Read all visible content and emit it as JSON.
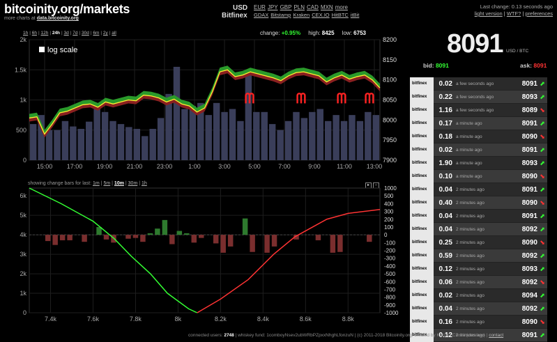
{
  "header": {
    "site_title": "bitcoinity.org/markets",
    "more_charts_prefix": "more charts at ",
    "more_charts_link": "data.bitcoinity.org",
    "currency_label": "USD",
    "exchange_label": "Bitfinex",
    "currencies": [
      "EUR",
      "JPY",
      "GBP",
      "PLN",
      "CAD",
      "MXN",
      "more"
    ],
    "exchanges": [
      "GDAX",
      "Bitstamp",
      "Kraken",
      "CEX.IO",
      "HitBTC",
      "itBit"
    ],
    "last_change": "Last change: 0.13 seconds ago",
    "light_version": "light version",
    "wtf": "WTF?",
    "preferences": "preferences"
  },
  "timeframes": [
    "1h",
    "6h",
    "12h",
    "24h",
    "3d",
    "7d",
    "30d",
    "6m",
    "2y",
    "all"
  ],
  "timeframe_selected": "24h",
  "stats": {
    "change_label": "change:",
    "change": "+0.95%",
    "high_label": "high:",
    "high": "8425",
    "low_label": "low:",
    "low": "6753"
  },
  "log_scale_label": "log scale",
  "change_bars": {
    "label": "showing change bars for last:",
    "options": [
      "1m",
      "5m",
      "10m",
      "30m",
      "1h"
    ],
    "selected": "10m"
  },
  "ticker": {
    "price": "8091",
    "unit": "USD / BTC",
    "bid_label": "bid:",
    "bid": "8091",
    "ask_label": "ask:",
    "ask": "8091"
  },
  "trades": [
    {
      "exchange": "bitfinex",
      "amount": "0.02",
      "time": "a few seconds ago",
      "price": "8091",
      "dir": "up"
    },
    {
      "exchange": "bitfinex",
      "amount": "0.22",
      "time": "a few seconds ago",
      "price": "8093",
      "dir": "up"
    },
    {
      "exchange": "bitfinex",
      "amount": "1.16",
      "time": "a few seconds ago",
      "price": "8089",
      "dir": "down"
    },
    {
      "exchange": "bitfinex",
      "amount": "0.17",
      "time": "a minute ago",
      "price": "8091",
      "dir": "up"
    },
    {
      "exchange": "bitfinex",
      "amount": "0.18",
      "time": "a minute ago",
      "price": "8090",
      "dir": "down"
    },
    {
      "exchange": "bitfinex",
      "amount": "0.02",
      "time": "a minute ago",
      "price": "8091",
      "dir": "up"
    },
    {
      "exchange": "bitfinex",
      "amount": "1.90",
      "time": "a minute ago",
      "price": "8093",
      "dir": "up"
    },
    {
      "exchange": "bitfinex",
      "amount": "0.10",
      "time": "a minute ago",
      "price": "8090",
      "dir": "down"
    },
    {
      "exchange": "bitfinex",
      "amount": "0.04",
      "time": "2 minutes ago",
      "price": "8091",
      "dir": "up"
    },
    {
      "exchange": "bitfinex",
      "amount": "0.40",
      "time": "2 minutes ago",
      "price": "8090",
      "dir": "down"
    },
    {
      "exchange": "bitfinex",
      "amount": "0.04",
      "time": "2 minutes ago",
      "price": "8091",
      "dir": "up"
    },
    {
      "exchange": "bitfinex",
      "amount": "0.04",
      "time": "2 minutes ago",
      "price": "8092",
      "dir": "up"
    },
    {
      "exchange": "bitfinex",
      "amount": "0.25",
      "time": "2 minutes ago",
      "price": "8090",
      "dir": "down"
    },
    {
      "exchange": "bitfinex",
      "amount": "0.59",
      "time": "2 minutes ago",
      "price": "8092",
      "dir": "up"
    },
    {
      "exchange": "bitfinex",
      "amount": "0.12",
      "time": "2 minutes ago",
      "price": "8093",
      "dir": "up"
    },
    {
      "exchange": "bitfinex",
      "amount": "0.06",
      "time": "2 minutes ago",
      "price": "8092",
      "dir": "down"
    },
    {
      "exchange": "bitfinex",
      "amount": "0.02",
      "time": "2 minutes ago",
      "price": "8094",
      "dir": "up"
    },
    {
      "exchange": "bitfinex",
      "amount": "0.04",
      "time": "2 minutes ago",
      "price": "8092",
      "dir": "up"
    },
    {
      "exchange": "bitfinex",
      "amount": "0.16",
      "time": "2 minutes ago",
      "price": "8090",
      "dir": "down"
    },
    {
      "exchange": "bitfinex",
      "amount": "0.12",
      "time": "2 minutes ago",
      "price": "8091",
      "dir": "up"
    }
  ],
  "footer": {
    "connected_label": "connected users:",
    "connected": "2748",
    "rest": "| whiskey fund: 1comboyNsev2ubWRbPZpxxNhghLfonzuN | (c) 2011-2018 Bitcoinity.org, created by Kacper Cieśla (comboy) |",
    "contact": "contact"
  },
  "colors": {
    "bg": "#000",
    "up": "#33ff33",
    "down": "#ff3333",
    "price_line": "#ffee33",
    "volume": "#3a3e5a",
    "annotation": "#ff2222"
  },
  "chart_data": [
    {
      "type": "line",
      "x_ticks": [
        "15:00",
        "17:00",
        "19:00",
        "21:00",
        "23:00",
        "1:00",
        "3:00",
        "5:00",
        "7:00",
        "9:00",
        "11:00",
        "13:00"
      ],
      "left_ticks": [
        "0",
        "500",
        "1k",
        "1.5k",
        "2k"
      ],
      "right_ticks": [
        "7900",
        "7950",
        "8000",
        "8050",
        "8100",
        "8150",
        "8200"
      ],
      "ylim_price": [
        7900,
        8200
      ],
      "ylim_volume": [
        0,
        2000
      ],
      "price": [
        8005,
        8008,
        7965,
        7990,
        8018,
        8022,
        8030,
        8038,
        8040,
        8032,
        8045,
        8040,
        8045,
        8050,
        8048,
        8062,
        8060,
        8055,
        8045,
        8052,
        8040,
        8035,
        8020,
        8030,
        8070,
        8120,
        8125,
        8108,
        8112,
        8120,
        8115,
        8110,
        8105,
        8098,
        8110,
        8118,
        8120,
        8115,
        8110,
        8095,
        8105,
        8112,
        8102,
        8108,
        8112,
        8100,
        8080
      ],
      "volume": [
        600,
        750,
        500,
        500,
        650,
        560,
        520,
        640,
        900,
        800,
        650,
        600,
        550,
        520,
        400,
        520,
        700,
        1100,
        1550,
        850,
        900,
        950,
        750,
        950,
        800,
        850,
        650,
        1500,
        800,
        800,
        600,
        500,
        650,
        800,
        700,
        800,
        850,
        650,
        750,
        650,
        750,
        650,
        800,
        750
      ],
      "annotations": [
        "ᗰ",
        "ᗰ",
        "ᗰ",
        "ᗰ"
      ]
    },
    {
      "type": "area",
      "x_ticks": [
        "7.4k",
        "7.6k",
        "7.8k",
        "8k",
        "8.2k",
        "8.4k",
        "8.6k",
        "8.8k"
      ],
      "left_ticks": [
        "0",
        "1k",
        "2k",
        "3k",
        "4k",
        "5k",
        "6k"
      ],
      "right_ticks": [
        "-1000",
        "-900",
        "-800",
        "-700",
        "-600",
        "-500",
        "-400",
        "-300",
        "-200",
        "-100",
        "0",
        "100",
        "200",
        "300",
        "400",
        "500",
        "1000"
      ],
      "bids": [
        [
          7300,
          6400
        ],
        [
          7450,
          5600
        ],
        [
          7600,
          4700
        ],
        [
          7700,
          3800
        ],
        [
          7780,
          2900
        ],
        [
          7870,
          2000
        ],
        [
          7950,
          1000
        ],
        [
          8050,
          200
        ],
        [
          8090,
          0
        ]
      ],
      "asks": [
        [
          8090,
          0
        ],
        [
          8200,
          700
        ],
        [
          8330,
          1700
        ],
        [
          8450,
          3000
        ],
        [
          8550,
          3900
        ],
        [
          8700,
          4800
        ],
        [
          8800,
          5100
        ],
        [
          8950,
          5300
        ]
      ],
      "change_bars": [
        0,
        0,
        -80,
        -130,
        -70,
        -70,
        0,
        -90,
        0,
        100,
        -60,
        -100,
        0,
        -50,
        -40,
        -90,
        20,
        80,
        190,
        -120,
        50,
        20,
        -100,
        -40,
        0,
        -110,
        -230,
        -150,
        0,
        210,
        -220,
        0,
        -230,
        -150,
        0,
        0,
        -60,
        0,
        0,
        -70,
        0,
        -230,
        -220,
        0,
        0,
        0,
        -90,
        0
      ]
    }
  ]
}
